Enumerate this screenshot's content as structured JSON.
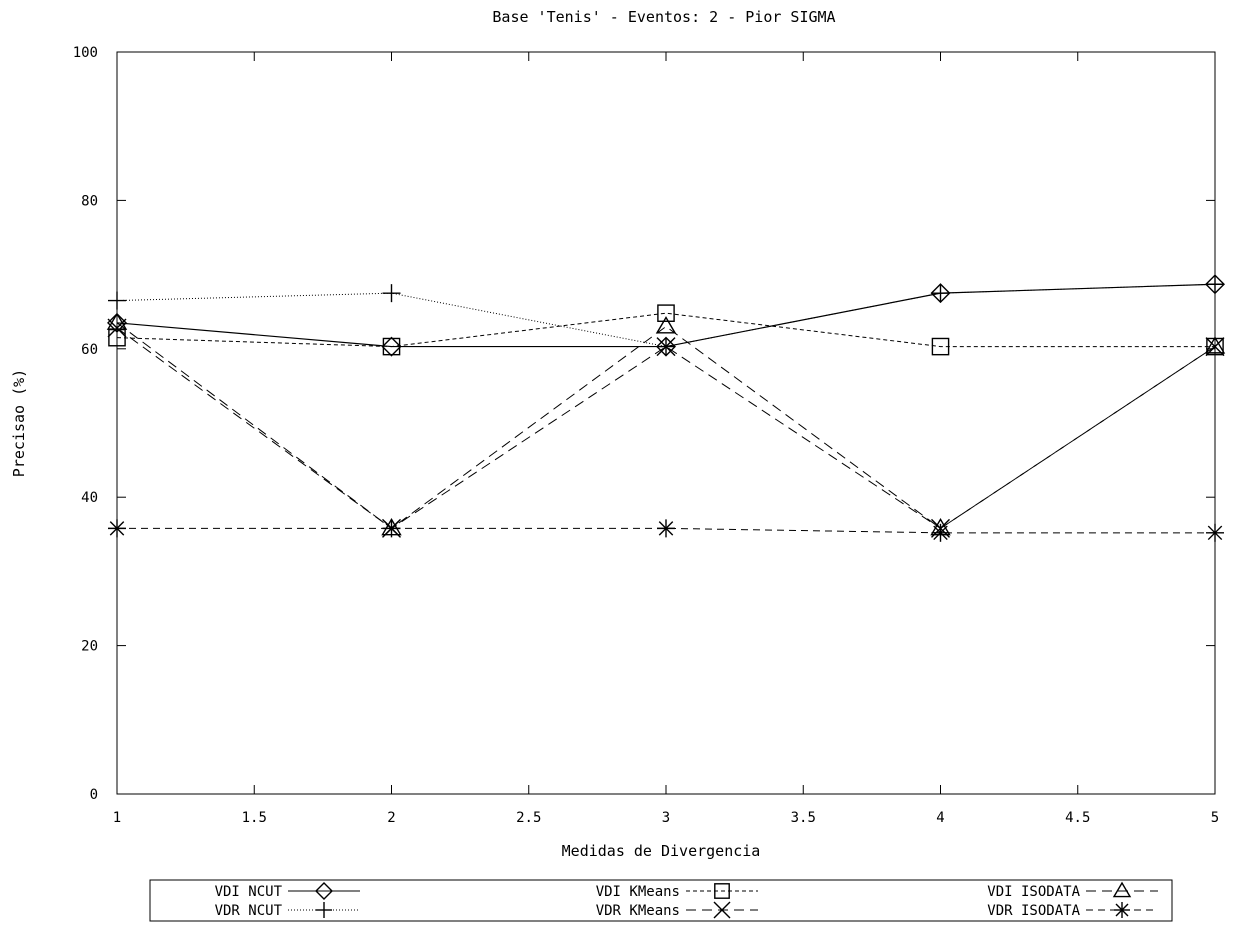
{
  "chart_data": {
    "type": "line",
    "title": "Base 'Tenis' - Eventos: 2 - Pior SIGMA",
    "xlabel": "Medidas de Divergencia",
    "ylabel": "Precisao (%)",
    "xlim": [
      1,
      5
    ],
    "ylim": [
      0,
      100
    ],
    "xticks": [
      "1",
      "1.5",
      "2",
      "2.5",
      "3",
      "3.5",
      "4",
      "4.5",
      "5"
    ],
    "yticks": [
      "0",
      "20",
      "40",
      "60",
      "80",
      "100"
    ],
    "grid": false,
    "legend_position": "bottom",
    "x": [
      1,
      2,
      3,
      4,
      5
    ],
    "series": [
      {
        "name": "VDI NCUT",
        "values": [
          63.5,
          60.3,
          60.3,
          67.5,
          68.7
        ],
        "marker": "diamond",
        "dash": "solid"
      },
      {
        "name": "VDR NCUT",
        "values": [
          66.5,
          67.5,
          60.3,
          67.5,
          68.7
        ],
        "marker": "plus",
        "dash": "dotted"
      },
      {
        "name": "VDI KMeans",
        "values": [
          61.5,
          60.3,
          64.8,
          60.3,
          60.3
        ],
        "marker": "square",
        "dash": "dashed-short"
      },
      {
        "name": "VDR KMeans",
        "values": [
          62.8,
          35.8,
          60.3,
          35.8,
          60.3
        ],
        "marker": "x",
        "dash": "dashed-long"
      },
      {
        "name": "VDI ISODATA",
        "values": [
          63.5,
          35.8,
          63.0,
          35.8,
          60.3
        ],
        "marker": "triangle",
        "dash": "dashed-long"
      },
      {
        "name": "VDR ISODATA",
        "values": [
          35.8,
          35.8,
          35.8,
          35.2,
          35.2
        ],
        "marker": "asterisk",
        "dash": "dashed-medium"
      }
    ]
  }
}
